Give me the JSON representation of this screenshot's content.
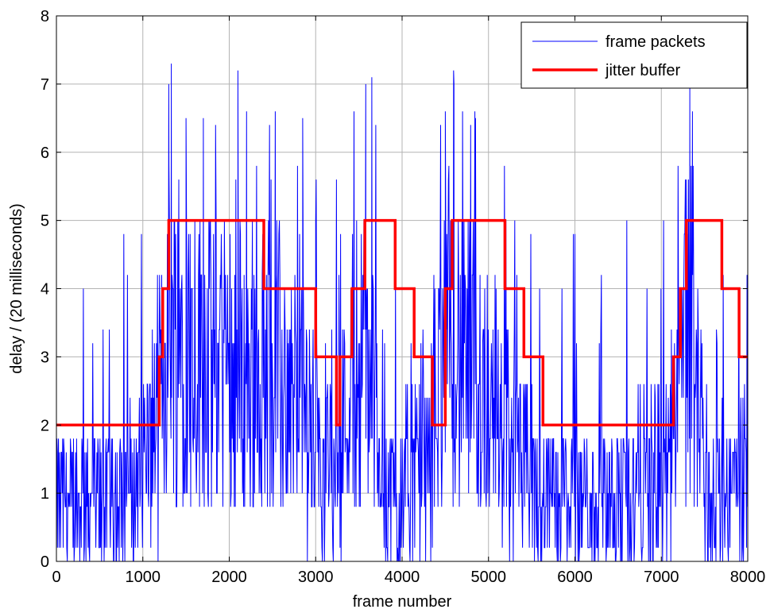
{
  "chart_data": {
    "type": "line",
    "xlabel": "frame number",
    "ylabel": "delay / (20 milliseconds)",
    "xlim": [
      0,
      8000
    ],
    "ylim": [
      0,
      8
    ],
    "xticks": [
      0,
      1000,
      2000,
      3000,
      4000,
      5000,
      6000,
      7000,
      8000
    ],
    "yticks": [
      0,
      1,
      2,
      3,
      4,
      5,
      6,
      7,
      8
    ],
    "xtick_labels": [
      "0",
      "1000",
      "2000",
      "3000",
      "4000",
      "5000",
      "6000",
      "7000",
      "8000"
    ],
    "ytick_labels": [
      "0",
      "1",
      "2",
      "3",
      "4",
      "5",
      "6",
      "7",
      "8"
    ],
    "grid": true,
    "legend_position": "top-right",
    "legend": [
      "frame packets",
      "jitter buffer"
    ],
    "series": [
      {
        "name": "frame packets",
        "color": "#0000ff",
        "style": "thin noisy line",
        "profile": {
          "x": [
            0,
            500,
            900,
            1000,
            1150,
            1250,
            1350,
            1500,
            2000,
            2400,
            2600,
            2900,
            3000,
            3150,
            3300,
            3400,
            3550,
            3700,
            3800,
            3900,
            4150,
            4300,
            4450,
            4550,
            4700,
            4900,
            5150,
            5400,
            5600,
            6000,
            6500,
            7000,
            7100,
            7200,
            7350,
            7450,
            7550,
            7800,
            8000
          ],
          "y": [
            0.8,
            0.8,
            1.0,
            1.4,
            1.8,
            3.0,
            3.5,
            3.0,
            2.9,
            2.7,
            2.5,
            2.1,
            1.7,
            1.5,
            1.8,
            2.6,
            3.0,
            2.3,
            1.2,
            0.8,
            1.1,
            1.5,
            2.8,
            3.2,
            3.0,
            2.5,
            2.0,
            1.2,
            0.9,
            0.8,
            0.9,
            1.1,
            1.3,
            2.4,
            3.4,
            2.2,
            0.8,
            0.9,
            1.0
          ]
        },
        "peaks": {
          "x": [
            1300,
            1330,
            1500,
            1700,
            2100,
            2200,
            2550,
            2850,
            3000,
            3580,
            3650,
            4500,
            4600,
            4700,
            4850,
            7330,
            7360
          ],
          "y": [
            7.0,
            7.3,
            6.5,
            6.5,
            7.2,
            6.6,
            5.0,
            6.5,
            5.0,
            7.0,
            7.1,
            6.6,
            7.0,
            6.6,
            6.5,
            7.0,
            6.6
          ]
        }
      },
      {
        "name": "jitter buffer",
        "color": "#ff0000",
        "style": "thick step line",
        "x": [
          0,
          1190,
          1190,
          1230,
          1230,
          1300,
          1300,
          2400,
          2400,
          3000,
          3000,
          3240,
          3240,
          3280,
          3280,
          3420,
          3420,
          3570,
          3570,
          3920,
          3920,
          4140,
          4140,
          4350,
          4350,
          4500,
          4500,
          4580,
          4580,
          5190,
          5190,
          5410,
          5410,
          5630,
          5630,
          7140,
          7140,
          7220,
          7220,
          7290,
          7290,
          7700,
          7700,
          7900,
          7900,
          8000
        ],
        "y": [
          2,
          2,
          3,
          3,
          4,
          4,
          5,
          5,
          4,
          4,
          3,
          3,
          2,
          2,
          3,
          3,
          4,
          4,
          5,
          5,
          4,
          4,
          3,
          3,
          2,
          2,
          4,
          4,
          5,
          5,
          4,
          4,
          3,
          3,
          2,
          2,
          3,
          3,
          4,
          4,
          5,
          5,
          4,
          4,
          3,
          3
        ]
      }
    ]
  }
}
